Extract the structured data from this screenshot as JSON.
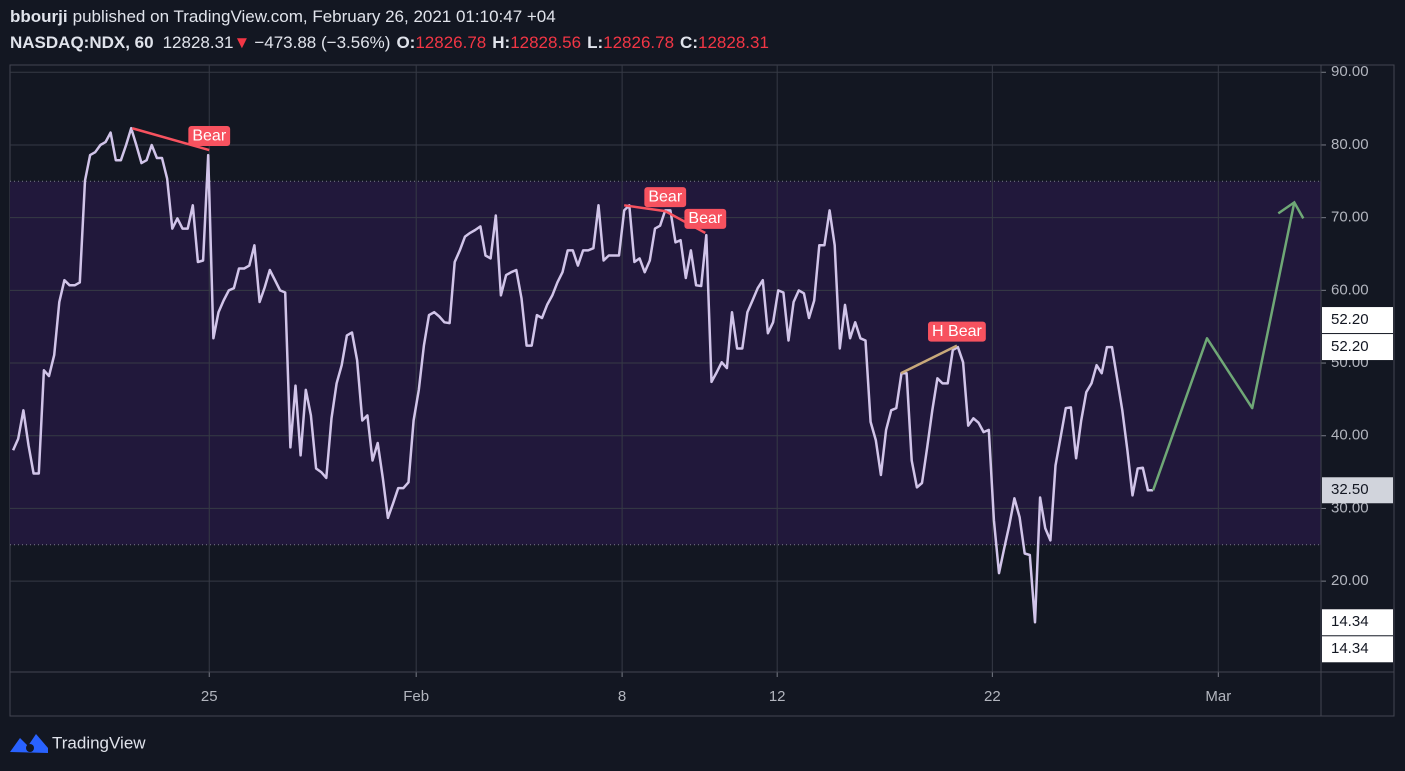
{
  "header": {
    "author": "bbourji",
    "published": "published on TradingView.com, February 26, 2021 01:10:47 +04",
    "symbol": "NASDAQ:NDX, 60",
    "last": "12828.31",
    "arrow": "▼",
    "change": "−473.88 (−3.56%)",
    "o_label": "O:",
    "o": "12826.78",
    "h_label": "H:",
    "h": "12828.56",
    "l_label": "L:",
    "l": "12826.78",
    "c_label": "C:",
    "c": "12828.31"
  },
  "footer": {
    "brand": "TradingView"
  },
  "chart_data": {
    "type": "line",
    "xlim": [
      -0.6,
      254.7
    ],
    "ylim": [
      7.5,
      91
    ],
    "xticks": [
      {
        "value": 38.2,
        "label": "25"
      },
      {
        "value": 78.5,
        "label": "Feb"
      },
      {
        "value": 118.6,
        "label": "8"
      },
      {
        "value": 148.8,
        "label": "12"
      },
      {
        "value": 190.7,
        "label": "22"
      },
      {
        "value": 234.7,
        "label": "Mar"
      }
    ],
    "yticks": [
      {
        "value": 20,
        "label": "20.00"
      },
      {
        "value": 30,
        "label": "30.00"
      },
      {
        "value": 40,
        "label": "40.00"
      },
      {
        "value": 50,
        "label": "50.00"
      },
      {
        "value": 60,
        "label": "60.00"
      },
      {
        "value": 70,
        "label": "70.00"
      },
      {
        "value": 80,
        "label": "80.00"
      },
      {
        "value": 90,
        "label": "90.00"
      }
    ],
    "grid": true,
    "band": [
      25,
      75
    ],
    "band_color": "#21183b",
    "series": [
      {
        "color": "#d1c4e9",
        "x": [
          0,
          1,
          2,
          3,
          4,
          5,
          6,
          7,
          8,
          9,
          10,
          11,
          12,
          13,
          14,
          15,
          16,
          17,
          18,
          19,
          20,
          21,
          22,
          23,
          24,
          25,
          26,
          27,
          28,
          29,
          30,
          31,
          32,
          33,
          34,
          35,
          36,
          37,
          38,
          39,
          40,
          41,
          42,
          43,
          44,
          45,
          46,
          47,
          48,
          49,
          50,
          51,
          52,
          53,
          54,
          55,
          56,
          57,
          58,
          59,
          60,
          61,
          62,
          63,
          64,
          65,
          66,
          67,
          68,
          69,
          70,
          71,
          72,
          73,
          74,
          75,
          76,
          77,
          78,
          79,
          80,
          81,
          82,
          83,
          84,
          85,
          86,
          87,
          88,
          89,
          90,
          91,
          92,
          93,
          94,
          95,
          96,
          97,
          98,
          99,
          100,
          101,
          102,
          103,
          104,
          105,
          106,
          107,
          108,
          109,
          110,
          111,
          112,
          113,
          114,
          115,
          116,
          117,
          118,
          119,
          120,
          121,
          122,
          123,
          124,
          125,
          126,
          127,
          128,
          129,
          130,
          131,
          132,
          133,
          134,
          135,
          136,
          137,
          138,
          139,
          140,
          141,
          142,
          143,
          144,
          145,
          146,
          147,
          148,
          149,
          150,
          151,
          152,
          153,
          154,
          155,
          156,
          157,
          158,
          159,
          160,
          161,
          162,
          163,
          164,
          165,
          166,
          167,
          168,
          169,
          170,
          171,
          172,
          173,
          174,
          175,
          176,
          177,
          178,
          179,
          180,
          181,
          182,
          183,
          184,
          185,
          186,
          187,
          188,
          189,
          190,
          191,
          192,
          193,
          194,
          195,
          196,
          197,
          198,
          199,
          200,
          201,
          202,
          203,
          204,
          205,
          206,
          207,
          208,
          209,
          210,
          211,
          212,
          213,
          214,
          215,
          216,
          217,
          218,
          219,
          220,
          221,
          222
        ],
        "values": [
          38.0,
          39.6,
          43.5,
          38.7,
          34.8,
          34.8,
          49.0,
          48.2,
          51.1,
          58.4,
          61.4,
          60.7,
          60.7,
          61.1,
          75.1,
          78.6,
          79.0,
          80.0,
          80.4,
          81.7,
          77.9,
          77.9,
          80.0,
          82.3,
          80.0,
          77.5,
          77.9,
          80.0,
          78.2,
          78.2,
          75.4,
          68.5,
          69.9,
          68.5,
          68.5,
          71.7,
          63.9,
          64.1,
          78.6,
          53.4,
          57.0,
          58.6,
          60.0,
          60.3,
          63.0,
          63.0,
          63.4,
          66.2,
          58.4,
          60.4,
          62.8,
          61.4,
          60.0,
          59.7,
          38.4,
          46.9,
          37.3,
          46.3,
          42.8,
          35.5,
          35.0,
          34.2,
          42.4,
          47.2,
          49.7,
          53.8,
          54.2,
          50.4,
          42.1,
          42.8,
          36.6,
          39.0,
          34.2,
          28.7,
          30.7,
          32.8,
          32.8,
          33.6,
          42.1,
          46.3,
          52.4,
          56.6,
          57.0,
          56.4,
          55.6,
          55.5,
          63.9,
          65.5,
          67.4,
          67.9,
          68.3,
          68.8,
          64.8,
          64.4,
          70.3,
          59.3,
          62.1,
          62.5,
          62.8,
          58.9,
          52.4,
          52.4,
          56.6,
          56.2,
          58.0,
          59.3,
          61.1,
          62.5,
          65.5,
          65.5,
          63.4,
          65.5,
          65.5,
          65.8,
          71.7,
          64.1,
          64.8,
          64.8,
          64.8,
          71.0,
          71.7,
          63.9,
          64.4,
          62.5,
          64.1,
          68.5,
          68.9,
          71.0,
          71.0,
          66.6,
          66.9,
          61.7,
          65.5,
          60.7,
          60.6,
          67.6,
          47.4,
          48.7,
          50.1,
          49.3,
          57.0,
          52.0,
          52.0,
          57.0,
          58.6,
          60.3,
          61.4,
          54.1,
          55.6,
          60.0,
          59.7,
          53.1,
          58.4,
          60.0,
          59.6,
          56.2,
          58.6,
          66.2,
          66.2,
          71.0,
          66.2,
          52.0,
          58.0,
          53.4,
          55.6,
          53.4,
          53.1,
          41.9,
          39.4,
          34.6,
          40.8,
          43.5,
          43.8,
          48.6,
          48.6,
          36.6,
          32.9,
          33.5,
          38.3,
          43.5,
          47.9,
          47.2,
          47.2,
          51.8,
          52.2,
          50.1,
          41.4,
          42.4,
          41.8,
          40.5,
          40.8,
          28.4,
          21.1,
          24.5,
          27.7,
          31.4,
          28.8,
          23.8,
          23.6,
          14.34,
          31.5,
          27.3,
          25.6,
          35.9,
          39.8,
          43.8,
          43.9,
          36.9,
          42.1,
          46.0,
          47.2,
          49.7,
          48.6,
          52.2,
          52.2,
          47.9,
          43.5,
          38.0,
          31.8,
          35.5,
          35.6,
          32.5,
          32.5
        ]
      },
      {
        "color": "#6fa776",
        "x": [
          222,
          232.5,
          241.3,
          249.5
        ],
        "values": [
          32.5,
          53.4,
          43.8,
          72.1
        ]
      }
    ],
    "annotations": [
      {
        "text": "Bear",
        "x": [
          23.2,
          38.2
        ],
        "y": [
          82.3,
          79.3
        ],
        "color": "#f7525f"
      },
      {
        "text": "Bear",
        "x": [
          119.0,
          127.0
        ],
        "y": [
          71.7,
          70.9
        ],
        "color": "#f7525f"
      },
      {
        "text": "Bear",
        "x": [
          127.0,
          134.8
        ],
        "y": [
          70.9,
          67.9
        ],
        "color": "#f7525f"
      },
      {
        "text": "H Bear",
        "x": [
          172.9,
          183.8
        ],
        "y": [
          48.6,
          52.4
        ],
        "color": "#c8a87a"
      }
    ],
    "price_labels": [
      {
        "value": 52.2,
        "label": "52.20",
        "color": "#ffffff"
      },
      {
        "value": 52.2,
        "label": "52.20",
        "color": "#ffffff"
      },
      {
        "value": 32.5,
        "label": "32.50",
        "color": "#d1d4dc"
      },
      {
        "value": 14.34,
        "label": "14.34",
        "color": "#ffffff"
      },
      {
        "value": 14.34,
        "label": "14.34",
        "color": "#ffffff"
      }
    ]
  }
}
